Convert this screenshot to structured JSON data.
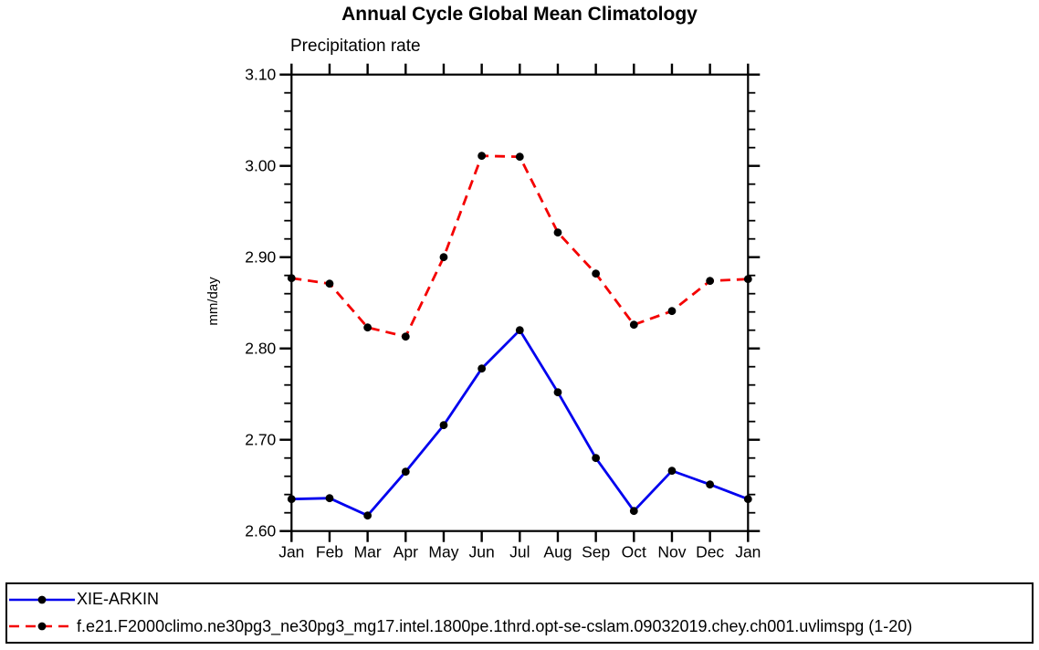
{
  "title": "Annual Cycle Global Mean Climatology",
  "subtitle": "Precipitation rate",
  "ylabel": "mm/day",
  "chart_data": {
    "type": "line",
    "categories": [
      "Jan",
      "Feb",
      "Mar",
      "Apr",
      "May",
      "Jun",
      "Jul",
      "Aug",
      "Sep",
      "Oct",
      "Nov",
      "Dec",
      "Jan"
    ],
    "series": [
      {
        "name": "XIE-ARKIN",
        "color": "#0000ee",
        "line_style": "solid",
        "marker": "filled-circle",
        "marker_color": "#000000",
        "values": [
          2.635,
          2.636,
          2.617,
          2.665,
          2.716,
          2.778,
          2.82,
          2.752,
          2.68,
          2.622,
          2.666,
          2.651,
          2.635
        ]
      },
      {
        "name": "f.e21.F2000climo.ne30pg3_ne30pg3_mg17.intel.1800pe.1thrd.opt-se-cslam.09032019.chey.ch001.uvlimspg (1-20)",
        "color": "#f40000",
        "line_style": "dashed",
        "marker": "filled-circle",
        "marker_color": "#000000",
        "values": [
          2.877,
          2.871,
          2.823,
          2.813,
          2.9,
          3.011,
          3.01,
          2.927,
          2.882,
          2.826,
          2.841,
          2.874,
          2.876
        ]
      }
    ],
    "title": "Annual Cycle Global Mean Climatology",
    "subtitle": "Precipitation rate",
    "xlabel": "",
    "ylabel": "mm/day",
    "ylim": [
      2.6,
      3.1
    ],
    "ytick_values": [
      2.6,
      2.7,
      2.8,
      2.9,
      3.0,
      3.1
    ],
    "ytick_labels": [
      "2.60",
      "2.70",
      "2.80",
      "2.90",
      "3.00",
      "3.10"
    ],
    "y_minor_step": 0.02,
    "grid": "off",
    "legend_position": "bottom-box",
    "frame_color": "#000000"
  }
}
